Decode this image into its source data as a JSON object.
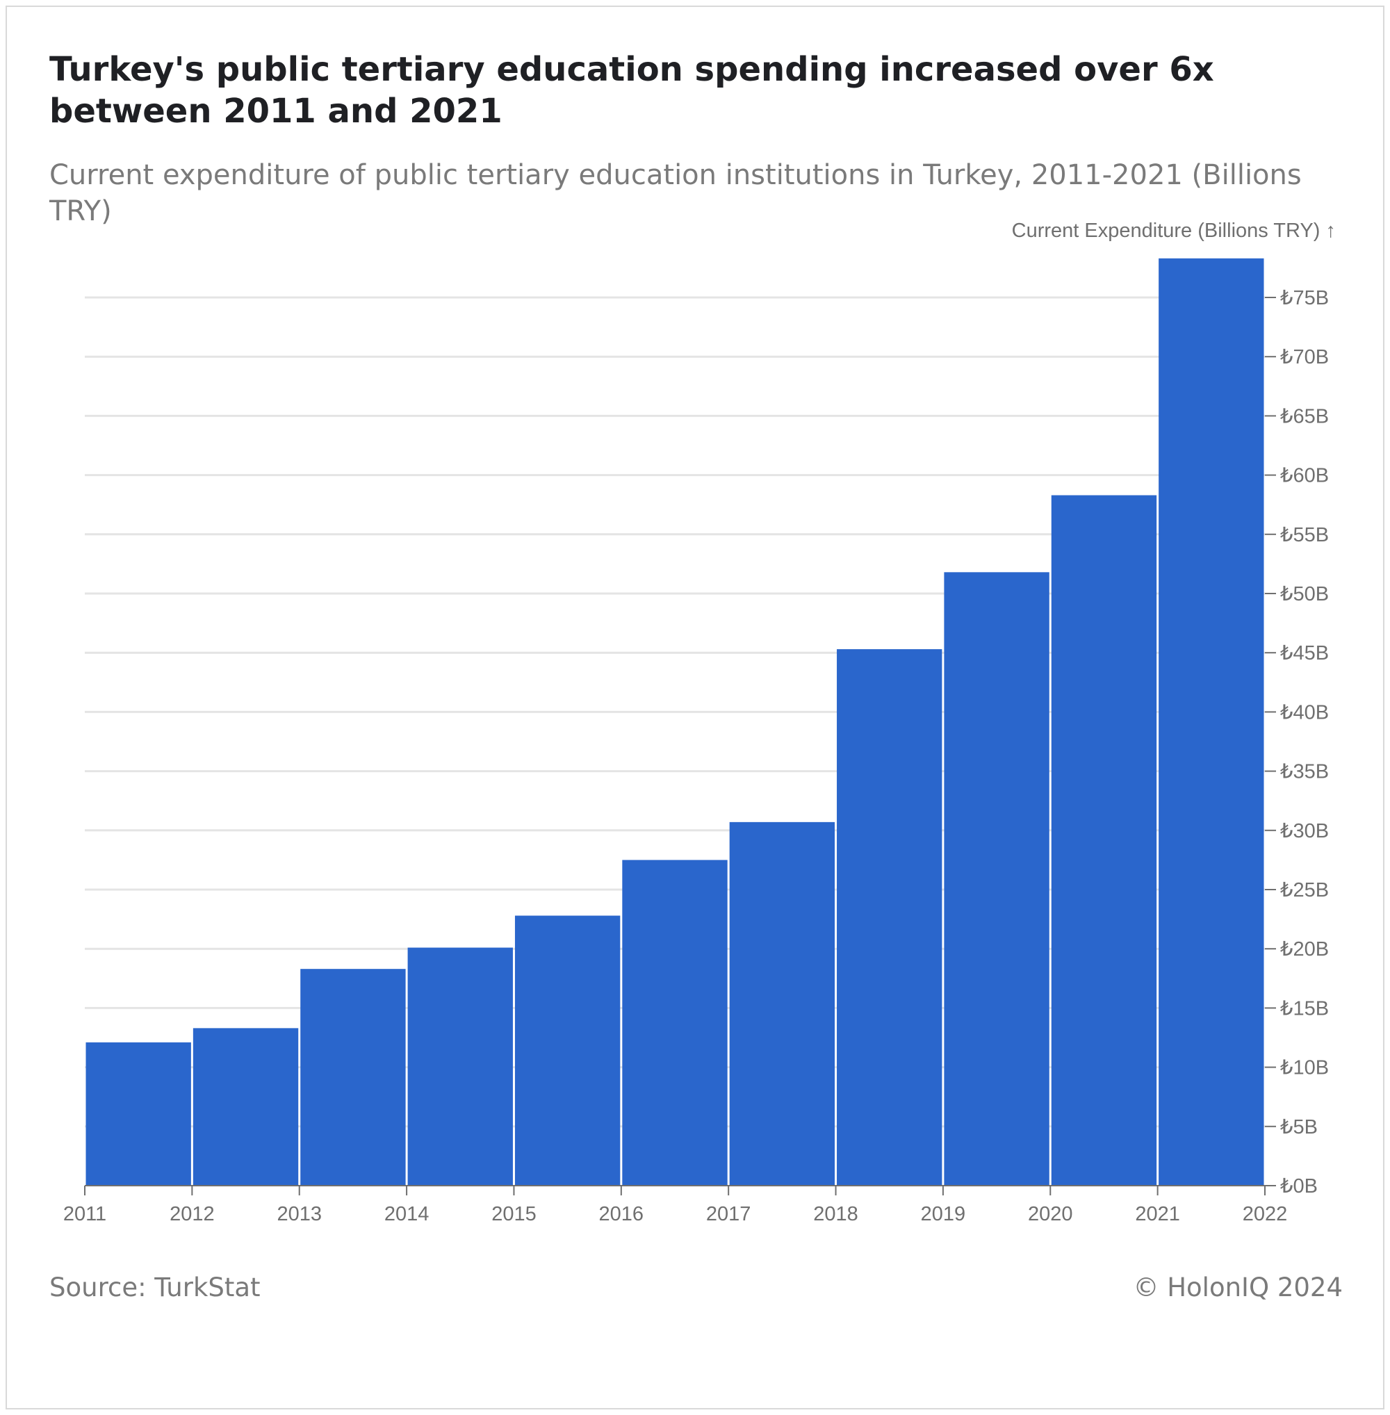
{
  "chart_data": {
    "type": "bar",
    "title": "Turkey's public tertiary education spending increased over 6x between 2011 and 2021",
    "subtitle": "Current expenditure of public tertiary education institutions in Turkey, 2011-2021 (Billions TRY)",
    "ylabel": "Current Expenditure (Billions TRY) ↑",
    "xlabel": "",
    "x_tick_labels": [
      "2011",
      "2012",
      "2013",
      "2014",
      "2015",
      "2016",
      "2017",
      "2018",
      "2019",
      "2020",
      "2021",
      "2022"
    ],
    "y_tick_labels": [
      "₺0B",
      "₺5B",
      "₺10B",
      "₺15B",
      "₺20B",
      "₺25B",
      "₺30B",
      "₺35B",
      "₺40B",
      "₺45B",
      "₺50B",
      "₺55B",
      "₺60B",
      "₺65B",
      "₺70B",
      "₺75B"
    ],
    "y_ticks": [
      0,
      5,
      10,
      15,
      20,
      25,
      30,
      35,
      40,
      45,
      50,
      55,
      60,
      65,
      70,
      75
    ],
    "ylim": [
      0,
      78
    ],
    "xlim": [
      2011,
      2022
    ],
    "categories": [
      "2011",
      "2012",
      "2013",
      "2014",
      "2015",
      "2016",
      "2017",
      "2018",
      "2019",
      "2020",
      "2021"
    ],
    "values": [
      12.1,
      13.3,
      18.3,
      20.1,
      22.8,
      27.5,
      30.7,
      45.3,
      51.8,
      58.3,
      78.3
    ],
    "bar_color": "#2a66cc",
    "grid": true,
    "y_axis_side": "right"
  },
  "footer": {
    "source": "Source: TurkStat",
    "credit": "© HolonIQ 2024"
  }
}
